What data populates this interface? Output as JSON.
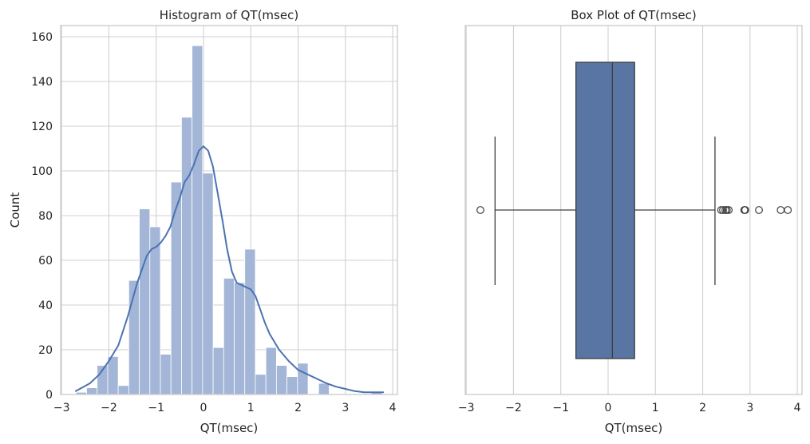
{
  "chart_data": [
    {
      "type": "histogram",
      "title": "Histogram of QT(msec)",
      "xlabel": "QT(msec)",
      "ylabel": "Count",
      "xlim": [
        -3.02,
        4.1
      ],
      "ylim": [
        0,
        165
      ],
      "xticks": [
        -3,
        -2,
        -1,
        0,
        1,
        2,
        3,
        4
      ],
      "yticks": [
        0,
        20,
        40,
        60,
        80,
        100,
        120,
        140,
        160
      ],
      "grid": true,
      "bar_color": "#a3b6d8",
      "kde_color": "#4c72b0",
      "bin_edges": [
        -2.695,
        -2.472,
        -2.249,
        -2.026,
        -1.803,
        -1.58,
        -1.357,
        -1.134,
        -0.911,
        -0.688,
        -0.465,
        -0.242,
        -0.019,
        0.204,
        0.427,
        0.65,
        0.873,
        1.096,
        1.319,
        1.542,
        1.765,
        1.988,
        2.211,
        2.434,
        2.657,
        2.88,
        3.103,
        3.326,
        3.549,
        3.772
      ],
      "counts": [
        1,
        3,
        13,
        17,
        4,
        51,
        83,
        75,
        18,
        95,
        124,
        156,
        99,
        21,
        52,
        50,
        65,
        9,
        21,
        13,
        8,
        14,
        0,
        5,
        0,
        0,
        0,
        0,
        1
      ],
      "kde": {
        "x": [
          -2.7,
          -2.4,
          -2.2,
          -2.0,
          -1.8,
          -1.6,
          -1.4,
          -1.2,
          -1.1,
          -1.0,
          -0.9,
          -0.8,
          -0.7,
          -0.6,
          -0.5,
          -0.4,
          -0.3,
          -0.2,
          -0.1,
          0.0,
          0.1,
          0.2,
          0.3,
          0.4,
          0.5,
          0.6,
          0.7,
          0.8,
          0.9,
          1.0,
          1.1,
          1.2,
          1.3,
          1.4,
          1.6,
          1.8,
          2.0,
          2.2,
          2.4,
          2.6,
          2.8,
          3.0,
          3.2,
          3.4,
          3.6,
          3.8
        ],
        "y": [
          1.5,
          5,
          9,
          15,
          22,
          35,
          50,
          62,
          65,
          66,
          68,
          71,
          75,
          82,
          88,
          95,
          98,
          103,
          109,
          111,
          109,
          102,
          90,
          78,
          65,
          55,
          50,
          49,
          48,
          47,
          44,
          38,
          32,
          27,
          20,
          15,
          11,
          9,
          7,
          5,
          3.5,
          2.5,
          1.5,
          1,
          1,
          1
        ]
      }
    },
    {
      "type": "box",
      "title": "Box Plot of QT(msec)",
      "xlabel": "QT(msec)",
      "xlim": [
        -3.02,
        4.1
      ],
      "xticks": [
        -3,
        -2,
        -1,
        0,
        1,
        2,
        3,
        4
      ],
      "grid": true,
      "box_color": "#5975a4",
      "edge_color": "#3d3d3d",
      "q1": -0.68,
      "median": 0.09,
      "q3": 0.56,
      "whisker_low": -2.39,
      "whisker_high": 2.26,
      "outliers": [
        -2.7,
        2.39,
        2.43,
        2.48,
        2.51,
        2.55,
        2.88,
        2.9,
        3.19,
        3.65,
        3.8
      ]
    }
  ]
}
